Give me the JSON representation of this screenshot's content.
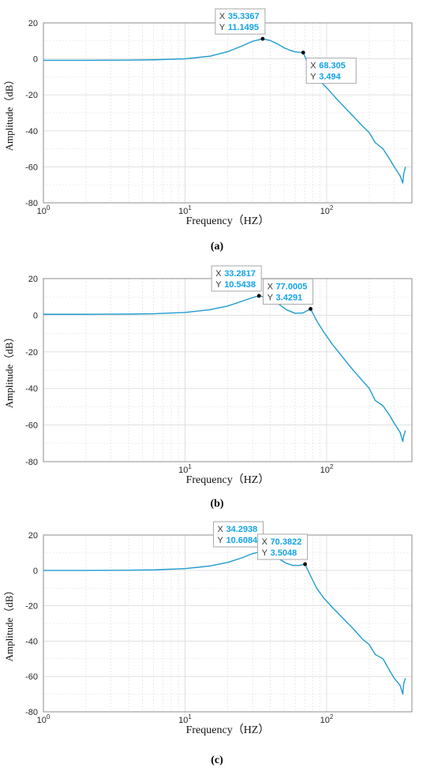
{
  "figure_labels": [
    "(a)",
    "(b)",
    "(c)"
  ],
  "style": {
    "line_color": "#1f9bcf",
    "datatip_value_color": "#12a3e8",
    "grid_color": "#dcdcdc",
    "axis_color": "#8c8c8c",
    "background": "#ffffff"
  },
  "chart_data": [
    {
      "panel": "(a)",
      "type": "line",
      "x_scale": "log",
      "xlim": [
        1,
        400
      ],
      "ylim": [
        -80,
        20
      ],
      "xlabel": "Frequency（HZ）",
      "ylabel": "Amplitude（dB）",
      "x_tick_labels": [
        "10^0",
        "10^1",
        "10^2"
      ],
      "y_ticks": [
        20,
        0,
        -20,
        -40,
        -60,
        -80
      ],
      "grid": true,
      "series": [
        {
          "x": [
            1,
            2,
            4,
            6,
            10,
            15,
            20,
            25,
            30,
            35.3367,
            40,
            45,
            50,
            55,
            60,
            68.305,
            75,
            80,
            90,
            100,
            120,
            150,
            180,
            200,
            220,
            250,
            280,
            300,
            330,
            345,
            350,
            360
          ],
          "y": [
            -0.8,
            -0.8,
            -0.7,
            -0.5,
            0,
            1.5,
            4,
            7,
            9.8,
            11.1495,
            10.2,
            8.3,
            6.2,
            4.8,
            3.9,
            3.494,
            -4,
            -8,
            -12.5,
            -16,
            -23,
            -31,
            -37.5,
            -41,
            -46.5,
            -50,
            -56,
            -60,
            -65,
            -69,
            -64,
            -60
          ]
        }
      ],
      "datatips": [
        {
          "x": "35.3367",
          "y": "11.1495",
          "label_side": "above"
        },
        {
          "x": "68.305",
          "y": "3.494",
          "label_side": "below"
        }
      ]
    },
    {
      "panel": "(b)",
      "type": "line",
      "x_scale": "log",
      "xlim": [
        1,
        400
      ],
      "ylim": [
        -80,
        20
      ],
      "xlabel": "Frequency（HZ）",
      "ylabel": "Amplitude（dB）",
      "x_tick_labels": [
        "10^1",
        "10^2"
      ],
      "y_ticks": [
        20,
        0,
        -20,
        -40,
        -60,
        -80
      ],
      "grid": true,
      "series": [
        {
          "x": [
            1,
            2,
            4,
            6,
            10,
            15,
            20,
            25,
            30,
            33.2817,
            38,
            45,
            52,
            60,
            68,
            77.0005,
            85,
            95,
            110,
            130,
            150,
            180,
            200,
            220,
            250,
            280,
            300,
            330,
            345,
            350,
            360
          ],
          "y": [
            0.5,
            0.5,
            0.6,
            0.8,
            1.5,
            3,
            5,
            7.5,
            9.6,
            10.5438,
            9.8,
            6.5,
            3,
            1,
            1.2,
            3.4291,
            -3,
            -9,
            -16,
            -23,
            -29,
            -36,
            -40,
            -46.5,
            -49.5,
            -55,
            -59,
            -64,
            -69,
            -66,
            -63
          ]
        }
      ],
      "datatips": [
        {
          "x": "33.2817",
          "y": "10.5438",
          "label_side": "above"
        },
        {
          "x": "77.0005",
          "y": "3.4291",
          "label_side": "above"
        }
      ]
    },
    {
      "panel": "(c)",
      "type": "line",
      "x_scale": "log",
      "xlim": [
        1,
        400
      ],
      "ylim": [
        -80,
        20
      ],
      "xlabel": "Frequency（HZ）",
      "ylabel": "Amplitude（dB）",
      "x_tick_labels": [
        "10^0",
        "10^1",
        "10^2"
      ],
      "y_ticks": [
        20,
        0,
        -20,
        -40,
        -60,
        -80
      ],
      "grid": true,
      "series": [
        {
          "x": [
            1,
            2,
            4,
            6,
            10,
            15,
            20,
            25,
            30,
            34.2938,
            40,
            46,
            52,
            58,
            64,
            70.3822,
            78,
            85,
            95,
            110,
            130,
            150,
            180,
            200,
            220,
            250,
            280,
            300,
            330,
            345,
            350,
            360
          ],
          "y": [
            0,
            0,
            0.1,
            0.3,
            1,
            2.5,
            4.5,
            7,
            9.5,
            10.6084,
            9.5,
            6.5,
            4,
            2.8,
            2.8,
            3.5048,
            -4,
            -10,
            -15.5,
            -21,
            -27,
            -32,
            -39,
            -42,
            -47.5,
            -50,
            -57,
            -61,
            -65,
            -70,
            -64,
            -61
          ]
        }
      ],
      "datatips": [
        {
          "x": "34.2938",
          "y": "10.6084",
          "label_side": "above"
        },
        {
          "x": "70.3822",
          "y": "3.5048",
          "label_side": "above"
        }
      ]
    }
  ]
}
